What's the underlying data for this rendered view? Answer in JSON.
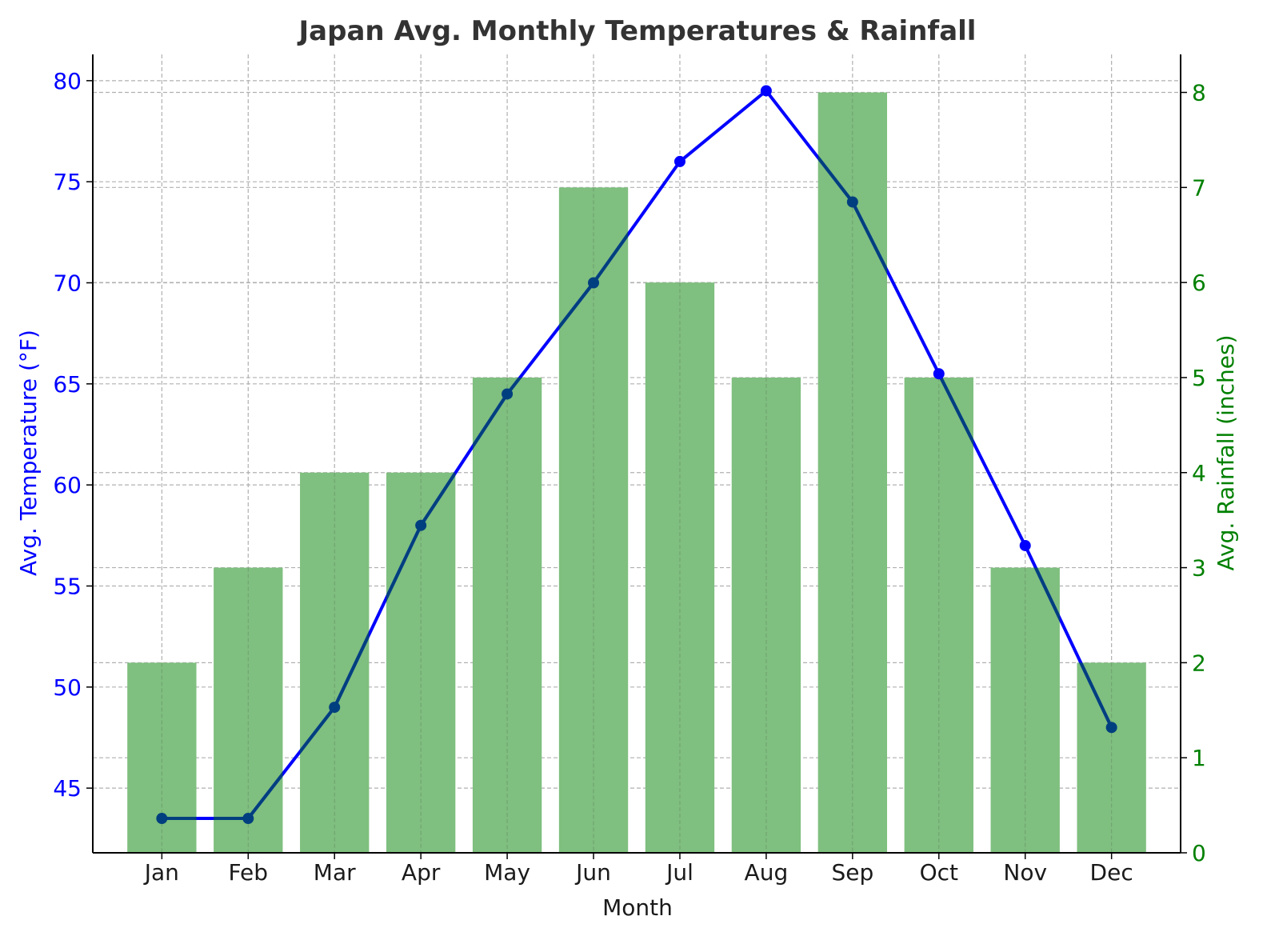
{
  "colors": {
    "temperature": "#0000ff",
    "rainfall": "#008000",
    "bar_fill": "#7fbf7f",
    "overlap_line": "#003f7f",
    "grid": "#b0b0b0",
    "title": "#333333"
  },
  "chart_data": {
    "type": "bar",
    "title": "Japan Avg. Monthly Temperatures & Rainfall",
    "xlabel": "Month",
    "categories": [
      "Jan",
      "Feb",
      "Mar",
      "Apr",
      "May",
      "Jun",
      "Jul",
      "Aug",
      "Sep",
      "Oct",
      "Nov",
      "Dec"
    ],
    "series": [
      {
        "type": "bar",
        "axis": "right",
        "values": [
          2,
          3,
          4,
          4,
          5,
          7,
          6,
          5,
          8,
          5,
          3,
          2
        ]
      },
      {
        "type": "line",
        "axis": "left",
        "marker": "circle",
        "values": [
          43.5,
          43.5,
          49,
          58,
          64.5,
          70,
          76,
          79.5,
          74,
          65.5,
          57,
          48
        ]
      }
    ],
    "y_left": {
      "label": "Avg. Temperature (°F)",
      "ticks": [
        45,
        50,
        55,
        60,
        65,
        70,
        75,
        80
      ],
      "lim": [
        41.8,
        81.3
      ]
    },
    "y_right": {
      "label": "Avg. Rainfall (inches)",
      "ticks": [
        0,
        1,
        2,
        3,
        4,
        5,
        6,
        7,
        8
      ],
      "lim": [
        0,
        8.4
      ]
    },
    "grid": true,
    "grid_style": "dashed"
  }
}
